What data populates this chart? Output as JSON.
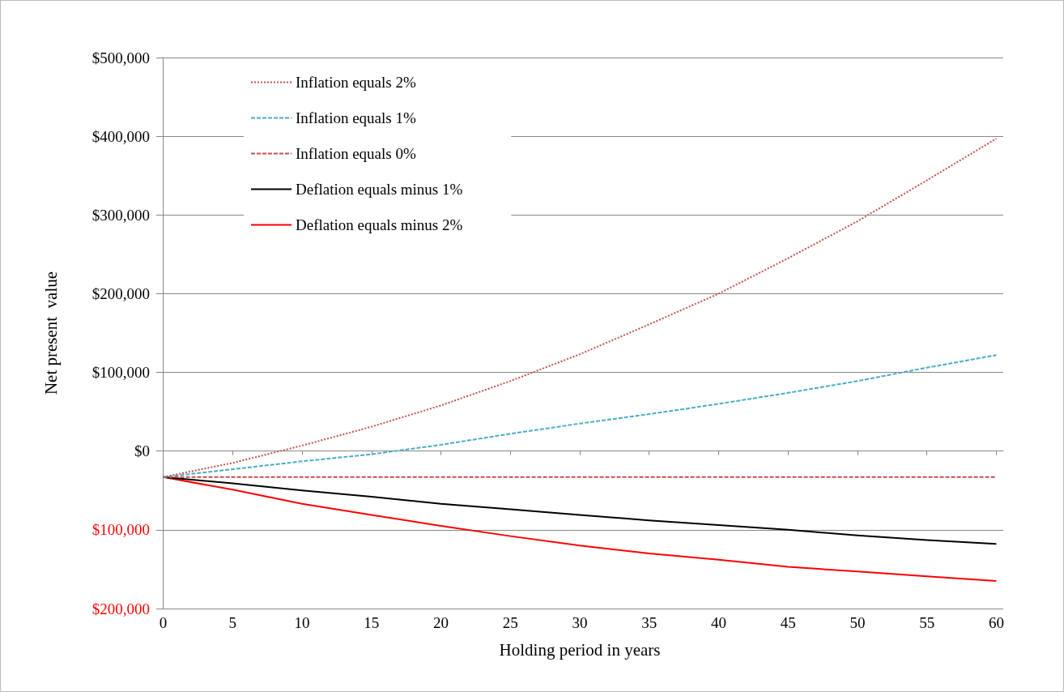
{
  "chart_data": {
    "type": "line",
    "xlabel": "Holding period in years",
    "ylabel": "Net present  value",
    "x": [
      0,
      5,
      10,
      15,
      20,
      25,
      30,
      35,
      40,
      45,
      50,
      55,
      60
    ],
    "xlim": [
      -0.5,
      60.5
    ],
    "xticks": [
      0,
      5,
      10,
      15,
      20,
      25,
      30,
      35,
      40,
      45,
      50,
      55,
      60
    ],
    "ylim": [
      -200000,
      500000
    ],
    "yticks": [
      {
        "value": -200000,
        "label": "$200,000"
      },
      {
        "value": -100000,
        "label": "$100,000"
      },
      {
        "value": 0,
        "label": "$0"
      },
      {
        "value": 100000,
        "label": "$100,000"
      },
      {
        "value": 200000,
        "label": "$200,000"
      },
      {
        "value": 300000,
        "label": "$300,000"
      },
      {
        "value": 400000,
        "label": "$400,000"
      },
      {
        "value": 500000,
        "label": "$500,000"
      }
    ],
    "grid": "y",
    "legend": "top left",
    "marker": "none",
    "series": [
      {
        "name": "Inflation equals 2%",
        "color": "#c0504d",
        "line_style": "dotted",
        "values": [
          -33000,
          -15000,
          7000,
          31000,
          58000,
          89000,
          123000,
          161000,
          200000,
          245000,
          292000,
          344000,
          397000
        ]
      },
      {
        "name": "Inflation equals 1%",
        "color": "#4bacc6",
        "line_style": "dashed",
        "values": [
          -33000,
          -23000,
          -13000,
          -4000,
          8000,
          22000,
          35000,
          47000,
          60000,
          74000,
          89000,
          106000,
          122000
        ]
      },
      {
        "name": "Inflation equals 0%",
        "color": "#c0504d",
        "line_style": "dashed",
        "values": [
          -33000,
          -33000,
          -33000,
          -33000,
          -33000,
          -33000,
          -33000,
          -33000,
          -33000,
          -33000,
          -33000,
          -33000,
          -33000
        ]
      },
      {
        "name": "Deflation equals minus 1%",
        "color": "#000000",
        "line_style": "solid",
        "values": [
          -33000,
          -41000,
          -50000,
          -58000,
          -67000,
          -74000,
          -81000,
          -88000,
          -94000,
          -100000,
          -107000,
          -113000,
          -118000
        ]
      },
      {
        "name": "Deflation equals minus 2%",
        "color": "#ff0000",
        "line_style": "solid",
        "values": [
          -33000,
          -49000,
          -67000,
          -81000,
          -95000,
          -108000,
          -120000,
          -130000,
          -138000,
          -147000,
          -153000,
          -159000,
          -165000
        ]
      }
    ]
  }
}
